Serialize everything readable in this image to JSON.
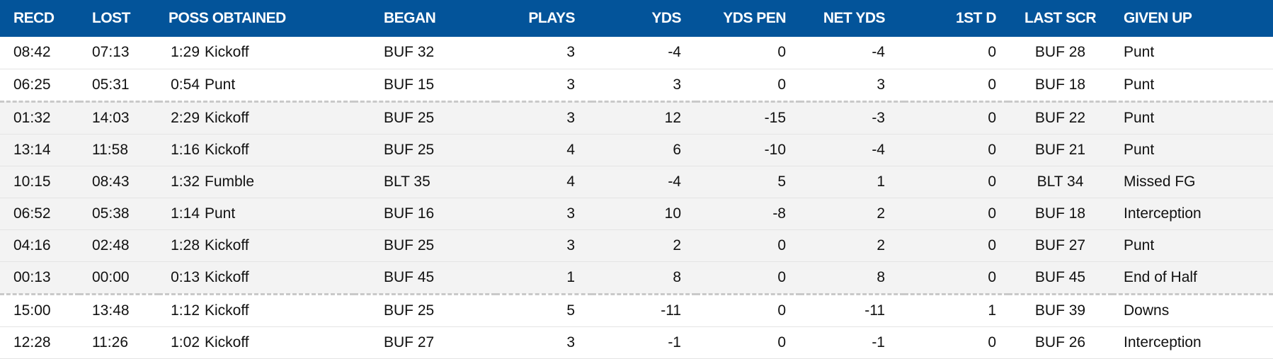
{
  "columns": {
    "recd": "RECD",
    "lost": "LOST",
    "poss": "POSS OBTAINED",
    "began": "BEGAN",
    "plays": "PLAYS",
    "yds": "YDS",
    "yds_pen": "YDS PEN",
    "net_yds": "NET YDS",
    "first_d": "1ST D",
    "last_scr": "LAST SCR",
    "given_up": "GIVEN UP"
  },
  "rows": [
    {
      "recd": "08:42",
      "lost": "07:13",
      "poss_time": "1:29",
      "obtained": "Kickoff",
      "began": "BUF 32",
      "plays": "3",
      "yds": "-4",
      "yds_pen": "0",
      "net_yds": "-4",
      "first_d": "0",
      "last_scr": "BUF 28",
      "given_up": "Punt"
    },
    {
      "recd": "06:25",
      "lost": "05:31",
      "poss_time": "0:54",
      "obtained": "Punt",
      "began": "BUF 15",
      "plays": "3",
      "yds": "3",
      "yds_pen": "0",
      "net_yds": "3",
      "first_d": "0",
      "last_scr": "BUF 18",
      "given_up": "Punt"
    },
    {
      "recd": "01:32",
      "lost": "14:03",
      "poss_time": "2:29",
      "obtained": "Kickoff",
      "began": "BUF 25",
      "plays": "3",
      "yds": "12",
      "yds_pen": "-15",
      "net_yds": "-3",
      "first_d": "0",
      "last_scr": "BUF 22",
      "given_up": "Punt"
    },
    {
      "recd": "13:14",
      "lost": "11:58",
      "poss_time": "1:16",
      "obtained": "Kickoff",
      "began": "BUF 25",
      "plays": "4",
      "yds": "6",
      "yds_pen": "-10",
      "net_yds": "-4",
      "first_d": "0",
      "last_scr": "BUF 21",
      "given_up": "Punt"
    },
    {
      "recd": "10:15",
      "lost": "08:43",
      "poss_time": "1:32",
      "obtained": "Fumble",
      "began": "BLT 35",
      "plays": "4",
      "yds": "-4",
      "yds_pen": "5",
      "net_yds": "1",
      "first_d": "0",
      "last_scr": "BLT 34",
      "given_up": "Missed FG"
    },
    {
      "recd": "06:52",
      "lost": "05:38",
      "poss_time": "1:14",
      "obtained": "Punt",
      "began": "BUF 16",
      "plays": "3",
      "yds": "10",
      "yds_pen": "-8",
      "net_yds": "2",
      "first_d": "0",
      "last_scr": "BUF 18",
      "given_up": "Interception"
    },
    {
      "recd": "04:16",
      "lost": "02:48",
      "poss_time": "1:28",
      "obtained": "Kickoff",
      "began": "BUF 25",
      "plays": "3",
      "yds": "2",
      "yds_pen": "0",
      "net_yds": "2",
      "first_d": "0",
      "last_scr": "BUF 27",
      "given_up": "Punt"
    },
    {
      "recd": "00:13",
      "lost": "00:00",
      "poss_time": "0:13",
      "obtained": "Kickoff",
      "began": "BUF 45",
      "plays": "1",
      "yds": "8",
      "yds_pen": "0",
      "net_yds": "8",
      "first_d": "0",
      "last_scr": "BUF 45",
      "given_up": "End of Half"
    },
    {
      "recd": "15:00",
      "lost": "13:48",
      "poss_time": "1:12",
      "obtained": "Kickoff",
      "began": "BUF 25",
      "plays": "5",
      "yds": "-11",
      "yds_pen": "0",
      "net_yds": "-11",
      "first_d": "1",
      "last_scr": "BUF 39",
      "given_up": "Downs"
    },
    {
      "recd": "12:28",
      "lost": "11:26",
      "poss_time": "1:02",
      "obtained": "Kickoff",
      "began": "BUF 27",
      "plays": "3",
      "yds": "-1",
      "yds_pen": "0",
      "net_yds": "-1",
      "first_d": "0",
      "last_scr": "BUF 26",
      "given_up": "Interception"
    }
  ],
  "colors": {
    "header_bg": "#03549a",
    "header_text": "#ffffff",
    "alt_row_bg": "#f3f3f3",
    "quarter_divider": "#c9c9c9"
  }
}
